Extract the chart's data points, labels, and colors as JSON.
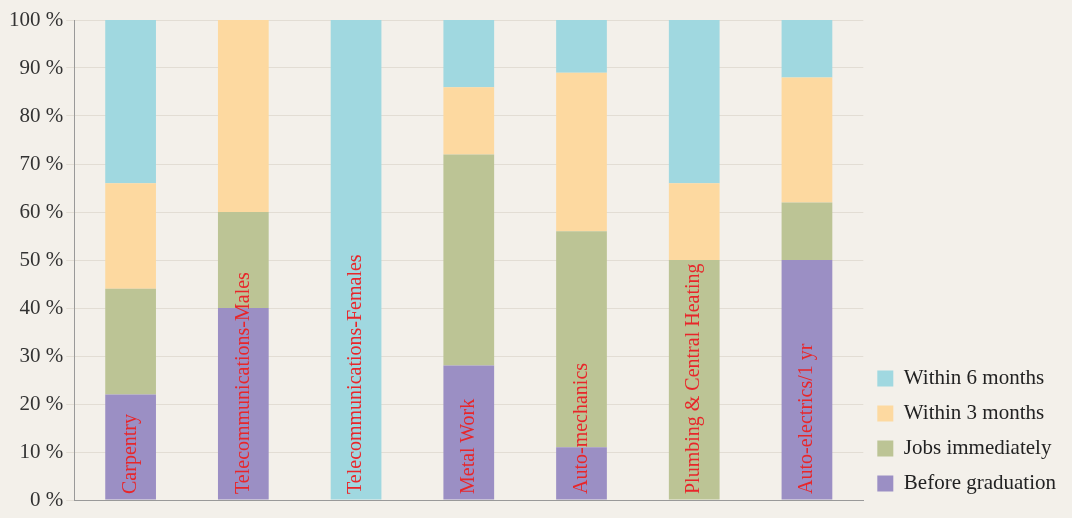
{
  "chart_data": {
    "type": "bar",
    "stacked": true,
    "legend": "right",
    "grid": "y",
    "categories": [
      "Carpentry",
      "Telecommunications-Males",
      "Telecommunications-Females",
      "Metal Work",
      "Auto-mechanics",
      "Plumbing & Central Heating",
      "Auto-electrics/1 yr"
    ],
    "ylim": [
      0,
      100
    ],
    "yticks": [
      {
        "value": 0,
        "label": "0 %"
      },
      {
        "value": 10,
        "label": "10 %"
      },
      {
        "value": 20,
        "label": "20 %"
      },
      {
        "value": 30,
        "label": "30 %"
      },
      {
        "value": 40,
        "label": "40 %"
      },
      {
        "value": 50,
        "label": "50 %"
      },
      {
        "value": 60,
        "label": "60 %"
      },
      {
        "value": 70,
        "label": "70 %"
      },
      {
        "value": 80,
        "label": "80 %"
      },
      {
        "value": 90,
        "label": "90 %"
      },
      {
        "value": 100,
        "label": "100 %"
      }
    ],
    "series": [
      {
        "name": "Before graduation",
        "color": "#9b8fc4",
        "values": [
          22,
          40,
          0,
          28,
          11,
          0,
          50
        ]
      },
      {
        "name": "Jobs immediately",
        "color": "#bcc495",
        "values": [
          22,
          20,
          0,
          44,
          45,
          50,
          12
        ]
      },
      {
        "name": "Within 3 months",
        "color": "#fdd9a0",
        "values": [
          22,
          40,
          0,
          14,
          33,
          16,
          26
        ]
      },
      {
        "name": "Within 6 months",
        "color": "#a0d8e0",
        "values": [
          34,
          0,
          100,
          14,
          11,
          34,
          12
        ]
      }
    ]
  }
}
